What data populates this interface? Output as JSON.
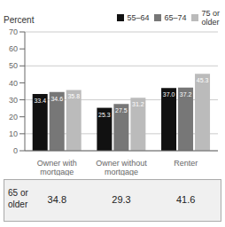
{
  "chart_data": {
    "type": "bar",
    "title": "Percent",
    "categories": [
      "Owner with\nmortgage",
      "Owner without\nmortgage",
      "Renter"
    ],
    "series": [
      {
        "name": "55–64",
        "color": "#111111",
        "values": [
          33.4,
          25.3,
          37.0
        ],
        "value_labels": [
          "33.4",
          "25.3",
          "37.0"
        ]
      },
      {
        "name": "65–74",
        "color": "#777777",
        "values": [
          34.6,
          27.5,
          37.2
        ],
        "value_labels": [
          "34.6",
          "27.5",
          "37.2"
        ]
      },
      {
        "name": "75 or\nolder",
        "color": "#bbbbbb",
        "values": [
          35.8,
          31.2,
          45.3
        ],
        "value_labels": [
          "35.8",
          "31.2",
          "45.3"
        ]
      }
    ],
    "ylim": [
      0,
      70
    ],
    "yticks": [
      0,
      10,
      20,
      30,
      40,
      50,
      60,
      70
    ],
    "grid": true,
    "data_labels": true,
    "legend": "top-right",
    "table": {
      "row_label": "65 or\nolder",
      "values": [
        34.8,
        29.3,
        41.6
      ]
    }
  }
}
